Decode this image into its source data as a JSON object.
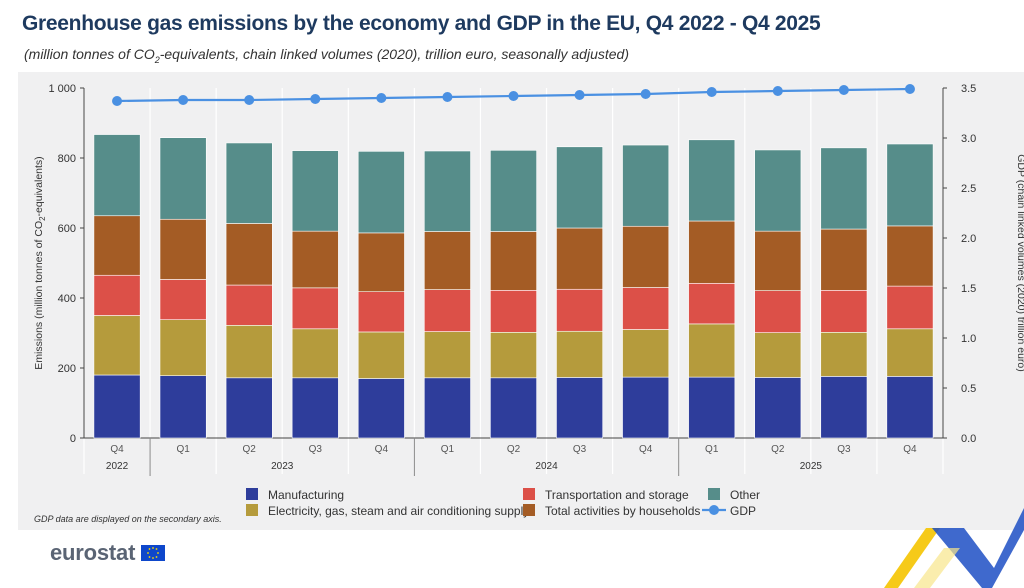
{
  "header": {
    "title": "Greenhouse gas emissions by the economy and GDP in the EU, Q4 2022 - Q4 2025",
    "subtitle_pre": "(million tonnes of CO",
    "subtitle_sub": "2",
    "subtitle_post": "-equivalents, chain linked volumes (2020), trillion euro, seasonally adjusted)"
  },
  "footnote": "GDP data are displayed on the secondary axis.",
  "logo": {
    "text": "eurostat"
  },
  "colors": {
    "manufacturing": "#2e3d9b",
    "electricity": "#b59b3c",
    "transport": "#dc5048",
    "households": "#a45c25",
    "other": "#568d8a",
    "gdp": "#4a90e2",
    "panel": "#f0f0f1",
    "accent_yellow": "#f5c400",
    "accent_blue": "#1d4fc4"
  },
  "chart_data": {
    "type": "bar",
    "stacked": true,
    "categories": [
      "Q4",
      "Q1",
      "Q2",
      "Q3",
      "Q4",
      "Q1",
      "Q2",
      "Q3",
      "Q4",
      "Q1",
      "Q2",
      "Q3",
      "Q4"
    ],
    "year_labels": [
      {
        "label": "2022",
        "start": 0,
        "end": 0
      },
      {
        "label": "2023",
        "start": 1,
        "end": 4
      },
      {
        "label": "2024",
        "start": 5,
        "end": 8
      },
      {
        "label": "2025",
        "start": 9,
        "end": 12
      }
    ],
    "ylabel_pre": "Emissions (million tonnes of CO",
    "ylabel_sub": "2",
    "ylabel_post": "-equivalents)",
    "y2label": "GDP (chain linked volumes (2020) trillion euro)",
    "ylim": [
      0,
      1000
    ],
    "y2lim": [
      0,
      3.5
    ],
    "yticks": [
      0,
      200,
      400,
      600,
      800,
      1000
    ],
    "ytick_labels": [
      "0",
      "200",
      "400",
      "600",
      "800",
      "1 000"
    ],
    "y2ticks": [
      0,
      0.5,
      1,
      1.5,
      2,
      2.5,
      3,
      3.5
    ],
    "y2tick_labels": [
      "0.0",
      "0.5",
      "1.0",
      "1.5",
      "2.0",
      "2.5",
      "3.0",
      "3.5"
    ],
    "series": [
      {
        "name": "Manufacturing",
        "key": "manufacturing",
        "values": [
          180,
          178,
          172,
          172,
          170,
          172,
          172,
          173,
          174,
          174,
          173,
          176,
          176
        ]
      },
      {
        "name": "Electricity, gas, steam and air conditioning supply",
        "key": "electricity",
        "values": [
          170,
          160,
          150,
          140,
          133,
          132,
          130,
          132,
          136,
          152,
          128,
          126,
          136
        ]
      },
      {
        "name": "Transportation and storage",
        "key": "transport",
        "values": [
          115,
          115,
          115,
          117,
          115,
          120,
          120,
          120,
          120,
          116,
          120,
          120,
          122
        ]
      },
      {
        "name": "Total activities by households",
        "key": "households",
        "values": [
          170,
          172,
          176,
          162,
          168,
          166,
          168,
          175,
          175,
          178,
          170,
          175,
          172
        ]
      },
      {
        "name": "Other",
        "key": "other",
        "values": [
          232,
          233,
          230,
          230,
          233,
          230,
          232,
          232,
          232,
          232,
          232,
          232,
          234
        ]
      }
    ],
    "gdp": {
      "name": "GDP",
      "values": [
        3.37,
        3.38,
        3.38,
        3.39,
        3.4,
        3.41,
        3.42,
        3.43,
        3.44,
        3.46,
        3.47,
        3.48,
        3.49
      ]
    },
    "legend": [
      {
        "name": "Manufacturing",
        "key": "manufacturing",
        "kind": "box"
      },
      {
        "name": "Electricity, gas, steam and air conditioning supply",
        "key": "electricity",
        "kind": "box"
      },
      {
        "name": "Transportation and storage",
        "key": "transport",
        "kind": "box"
      },
      {
        "name": "Total activities by households",
        "key": "households",
        "kind": "box"
      },
      {
        "name": "Other",
        "key": "other",
        "kind": "box"
      },
      {
        "name": "GDP",
        "key": "gdp",
        "kind": "line"
      }
    ],
    "grid": "vertical separators",
    "legend_position": "bottom"
  }
}
